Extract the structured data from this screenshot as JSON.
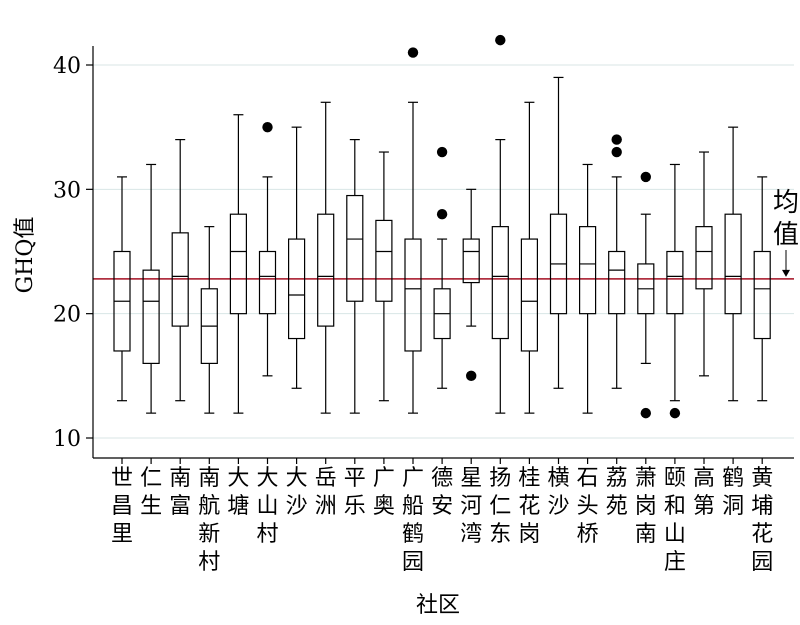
{
  "chart_data": {
    "type": "box",
    "xlabel": "社区",
    "ylabel": "GHQ值",
    "ylim": [
      8.5,
      43.5
    ],
    "yticks": [
      10,
      20,
      30,
      40
    ],
    "grid": true,
    "colors": {
      "box": "#000000",
      "mean_line": "#b03040",
      "grid": "#d8e6e6"
    },
    "mean": {
      "value": 22.8,
      "label": "均值"
    },
    "categories": [
      "世昌里",
      "仁生",
      "南富",
      "南航新村",
      "大塘",
      "大山村",
      "大沙",
      "岳洲",
      "平乐",
      "广奥",
      "广船鹤园",
      "德安",
      "星河湾",
      "扬仁东",
      "桂花岗",
      "横沙",
      "石头桥",
      "荔苑",
      "萧岗南",
      "颐和山庄",
      "高第",
      "鹤洞",
      "黄埔花园"
    ],
    "boxes": [
      {
        "name": "世昌里",
        "min": 13,
        "q1": 17,
        "median": 21,
        "q3": 25,
        "max": 31,
        "outliers": []
      },
      {
        "name": "仁生",
        "min": 12,
        "q1": 16,
        "median": 21,
        "q3": 23.5,
        "max": 32,
        "outliers": []
      },
      {
        "name": "南富",
        "min": 13,
        "q1": 19,
        "median": 23,
        "q3": 26.5,
        "max": 34,
        "outliers": []
      },
      {
        "name": "南航新村",
        "min": 12,
        "q1": 16,
        "median": 19,
        "q3": 22,
        "max": 27,
        "outliers": []
      },
      {
        "name": "大塘",
        "min": 12,
        "q1": 20,
        "median": 25,
        "q3": 28,
        "max": 36,
        "outliers": []
      },
      {
        "name": "大山村",
        "min": 15,
        "q1": 20,
        "median": 23,
        "q3": 25,
        "max": 31,
        "outliers": [
          35
        ]
      },
      {
        "name": "大沙",
        "min": 14,
        "q1": 18,
        "median": 21.5,
        "q3": 26,
        "max": 35,
        "outliers": []
      },
      {
        "name": "岳洲",
        "min": 12,
        "q1": 19,
        "median": 23,
        "q3": 28,
        "max": 37,
        "outliers": []
      },
      {
        "name": "平乐",
        "min": 12,
        "q1": 21,
        "median": 26,
        "q3": 29.5,
        "max": 34,
        "outliers": []
      },
      {
        "name": "广奥",
        "min": 13,
        "q1": 21,
        "median": 25,
        "q3": 27.5,
        "max": 33,
        "outliers": []
      },
      {
        "name": "广船鹤园",
        "min": 12,
        "q1": 17,
        "median": 22,
        "q3": 26,
        "max": 37,
        "outliers": [
          41
        ]
      },
      {
        "name": "德安",
        "min": 14,
        "q1": 18,
        "median": 20,
        "q3": 22,
        "max": 26,
        "outliers": [
          28,
          33
        ]
      },
      {
        "name": "星河湾",
        "min": 19,
        "q1": 22.5,
        "median": 25,
        "q3": 26,
        "max": 30,
        "outliers": [
          15
        ]
      },
      {
        "name": "扬仁东",
        "min": 12,
        "q1": 18,
        "median": 23,
        "q3": 27,
        "max": 34,
        "outliers": [
          42
        ]
      },
      {
        "name": "桂花岗",
        "min": 12,
        "q1": 17,
        "median": 21,
        "q3": 26,
        "max": 37,
        "outliers": []
      },
      {
        "name": "横沙",
        "min": 14,
        "q1": 20,
        "median": 24,
        "q3": 28,
        "max": 39,
        "outliers": []
      },
      {
        "name": "石头桥",
        "min": 12,
        "q1": 20,
        "median": 24,
        "q3": 27,
        "max": 32,
        "outliers": []
      },
      {
        "name": "荔苑",
        "min": 14,
        "q1": 20,
        "median": 23.5,
        "q3": 25,
        "max": 31,
        "outliers": [
          33,
          34
        ]
      },
      {
        "name": "萧岗南",
        "min": 16,
        "q1": 20,
        "median": 22,
        "q3": 24,
        "max": 28,
        "outliers": [
          12,
          31
        ]
      },
      {
        "name": "颐和山庄",
        "min": 13,
        "q1": 20,
        "median": 23,
        "q3": 25,
        "max": 32,
        "outliers": [
          12
        ]
      },
      {
        "name": "高第",
        "min": 15,
        "q1": 22,
        "median": 25,
        "q3": 27,
        "max": 33,
        "outliers": []
      },
      {
        "name": "鹤洞",
        "min": 13,
        "q1": 20,
        "median": 23,
        "q3": 28,
        "max": 35,
        "outliers": []
      },
      {
        "name": "黄埔花园",
        "min": 13,
        "q1": 18,
        "median": 22,
        "q3": 25,
        "max": 31,
        "outliers": []
      }
    ]
  }
}
